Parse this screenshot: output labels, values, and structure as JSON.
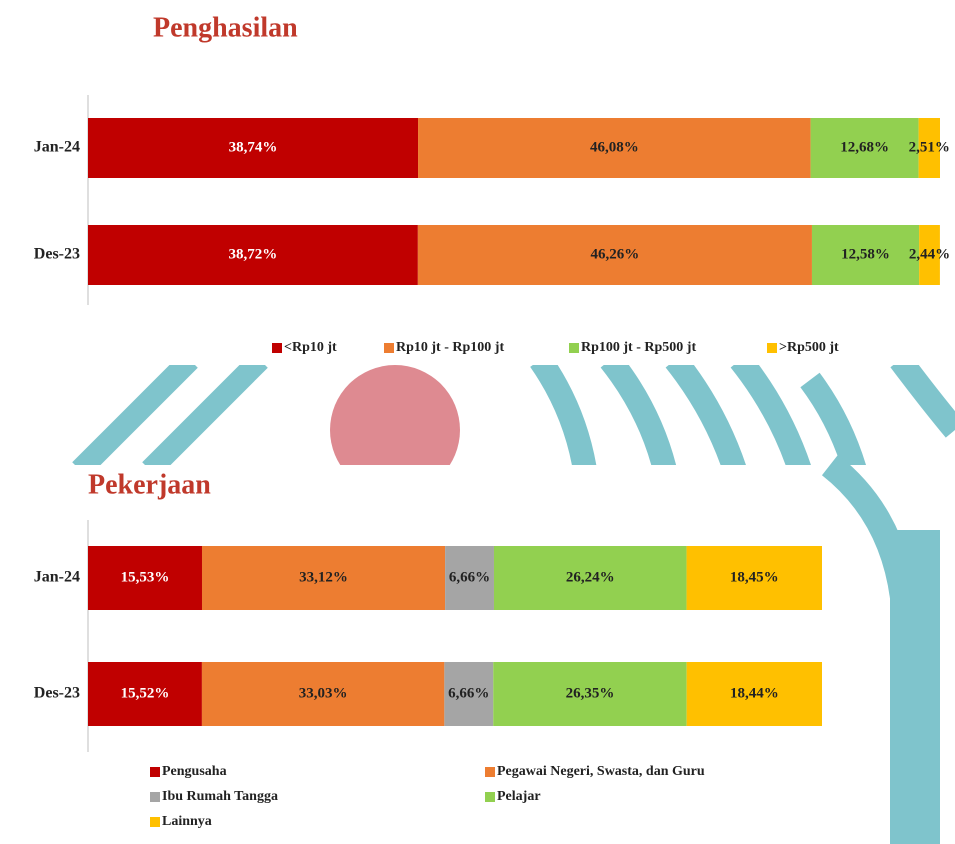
{
  "chart_data": [
    {
      "type": "stacked-bar-horizontal",
      "title": "Penghasilan",
      "categories": [
        "Jan-24",
        "Des-23"
      ],
      "series": [
        {
          "name": "<Rp10 jt",
          "color": "#c00000",
          "values": [
            38.74,
            38.72
          ],
          "value_labels": [
            "38,74%",
            "38,72%"
          ]
        },
        {
          "name": "Rp10 jt - Rp100 jt",
          "color": "#ed7d31",
          "values": [
            46.08,
            46.26
          ],
          "value_labels": [
            "46,08%",
            "46,26%"
          ]
        },
        {
          "name": "Rp100 jt - Rp500 jt",
          "color": "#92d050",
          "values": [
            12.68,
            12.58
          ],
          "value_labels": [
            "12,68%",
            "12,58%"
          ]
        },
        {
          "name": ">Rp500 jt",
          "color": "#ffc000",
          "values": [
            2.51,
            2.44
          ],
          "value_labels": [
            "2,51%",
            "2,44%"
          ]
        }
      ]
    },
    {
      "type": "stacked-bar-horizontal",
      "title": "Pekerjaan",
      "categories": [
        "Jan-24",
        "Des-23"
      ],
      "series": [
        {
          "name": "Pengusaha",
          "color": "#c00000",
          "values": [
            15.53,
            15.52
          ],
          "value_labels": [
            "15,53%",
            "15,52%"
          ]
        },
        {
          "name": "Pegawai Negeri, Swasta, dan Guru",
          "color": "#ed7d31",
          "values": [
            33.12,
            33.03
          ],
          "value_labels": [
            "33,12%",
            "33,03%"
          ]
        },
        {
          "name": "Ibu Rumah Tangga",
          "color": "#a5a5a5",
          "values": [
            6.66,
            6.66
          ],
          "value_labels": [
            "6,66%",
            "6,66%"
          ]
        },
        {
          "name": "Pelajar",
          "color": "#92d050",
          "values": [
            26.24,
            26.35
          ],
          "value_labels": [
            "26,24%",
            "26,35%"
          ]
        },
        {
          "name": "Lainnya",
          "color": "#ffc000",
          "values": [
            18.45,
            18.44
          ],
          "value_labels": [
            "18,45%",
            "18,44%"
          ]
        }
      ]
    }
  ]
}
